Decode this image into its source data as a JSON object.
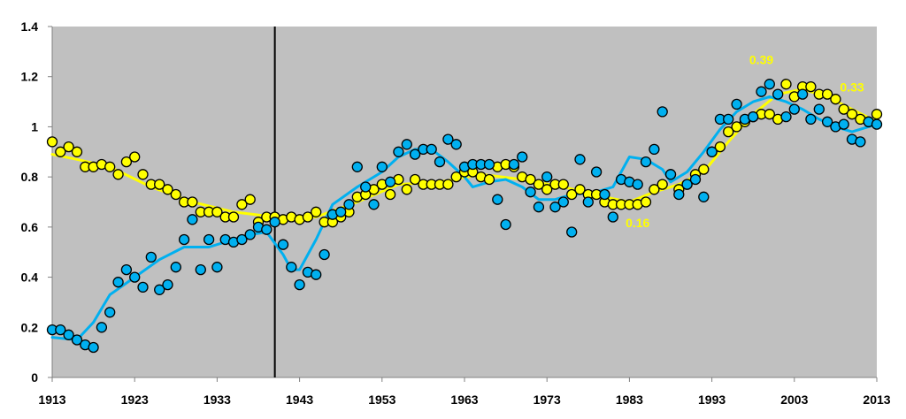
{
  "chart_data": {
    "type": "scatter",
    "x_ticks": [
      "1913",
      "1923",
      "1933",
      "1943",
      "1953",
      "1963",
      "1973",
      "1983",
      "1993",
      "2003",
      "2013"
    ],
    "y_ticks": [
      "0",
      "0.2",
      "0.4",
      "0.6",
      "0.8",
      "1",
      "1.2",
      "1.4"
    ],
    "xlim": [
      1913,
      2013
    ],
    "ylim": [
      0,
      1.4
    ],
    "grid": false,
    "plot_background": "#c0c0c0",
    "reference_line_x": 1940,
    "annotations": [
      {
        "text": "0.39",
        "x": 1999,
        "y": 1.25
      },
      {
        "text": "0.33",
        "x": 2010,
        "y": 1.14
      },
      {
        "text": "0.16",
        "x": 1984,
        "y": 0.6
      }
    ],
    "series": [
      {
        "color": "#ffff00",
        "points": [
          [
            1913,
            0.94
          ],
          [
            1914,
            0.9
          ],
          [
            1915,
            0.92
          ],
          [
            1916,
            0.9
          ],
          [
            1917,
            0.84
          ],
          [
            1918,
            0.84
          ],
          [
            1919,
            0.85
          ],
          [
            1920,
            0.84
          ],
          [
            1921,
            0.81
          ],
          [
            1922,
            0.86
          ],
          [
            1923,
            0.88
          ],
          [
            1924,
            0.81
          ],
          [
            1925,
            0.77
          ],
          [
            1926,
            0.77
          ],
          [
            1927,
            0.75
          ],
          [
            1928,
            0.73
          ],
          [
            1929,
            0.7
          ],
          [
            1930,
            0.7
          ],
          [
            1931,
            0.66
          ],
          [
            1932,
            0.66
          ],
          [
            1933,
            0.66
          ],
          [
            1934,
            0.64
          ],
          [
            1935,
            0.64
          ],
          [
            1936,
            0.69
          ],
          [
            1937,
            0.71
          ],
          [
            1938,
            0.62
          ],
          [
            1939,
            0.64
          ],
          [
            1940,
            0.64
          ],
          [
            1941,
            0.63
          ],
          [
            1942,
            0.64
          ],
          [
            1943,
            0.63
          ],
          [
            1944,
            0.64
          ],
          [
            1945,
            0.66
          ],
          [
            1946,
            0.62
          ],
          [
            1947,
            0.62
          ],
          [
            1948,
            0.64
          ],
          [
            1949,
            0.66
          ],
          [
            1950,
            0.72
          ],
          [
            1951,
            0.73
          ],
          [
            1952,
            0.75
          ],
          [
            1953,
            0.77
          ],
          [
            1954,
            0.73
          ],
          [
            1955,
            0.79
          ],
          [
            1956,
            0.75
          ],
          [
            1957,
            0.79
          ],
          [
            1958,
            0.77
          ],
          [
            1959,
            0.77
          ],
          [
            1960,
            0.77
          ],
          [
            1961,
            0.77
          ],
          [
            1962,
            0.8
          ],
          [
            1963,
            0.82
          ],
          [
            1964,
            0.82
          ],
          [
            1965,
            0.8
          ],
          [
            1966,
            0.79
          ],
          [
            1967,
            0.84
          ],
          [
            1968,
            0.85
          ],
          [
            1969,
            0.84
          ],
          [
            1970,
            0.8
          ],
          [
            1971,
            0.79
          ],
          [
            1972,
            0.77
          ],
          [
            1973,
            0.75
          ],
          [
            1974,
            0.77
          ],
          [
            1975,
            0.77
          ],
          [
            1976,
            0.73
          ],
          [
            1977,
            0.75
          ],
          [
            1978,
            0.73
          ],
          [
            1979,
            0.73
          ],
          [
            1980,
            0.7
          ],
          [
            1981,
            0.69
          ],
          [
            1982,
            0.69
          ],
          [
            1983,
            0.69
          ],
          [
            1984,
            0.69
          ],
          [
            1985,
            0.7
          ],
          [
            1986,
            0.75
          ],
          [
            1987,
            0.77
          ],
          [
            1988,
            0.81
          ],
          [
            1989,
            0.75
          ],
          [
            1990,
            0.77
          ],
          [
            1991,
            0.81
          ],
          [
            1992,
            0.83
          ],
          [
            1993,
            0.9
          ],
          [
            1994,
            0.92
          ],
          [
            1995,
            0.98
          ],
          [
            1996,
            1.0
          ],
          [
            1997,
            1.02
          ],
          [
            1998,
            1.04
          ],
          [
            1999,
            1.05
          ],
          [
            2000,
            1.05
          ],
          [
            2001,
            1.03
          ],
          [
            2002,
            1.17
          ],
          [
            2003,
            1.12
          ],
          [
            2004,
            1.16
          ],
          [
            2005,
            1.16
          ],
          [
            2006,
            1.13
          ],
          [
            2007,
            1.13
          ],
          [
            2008,
            1.11
          ],
          [
            2009,
            1.07
          ],
          [
            2010,
            1.05
          ],
          [
            2011,
            1.03
          ],
          [
            2012,
            1.02
          ],
          [
            2013,
            1.05
          ]
        ],
        "trend": [
          [
            1913,
            0.89
          ],
          [
            1916,
            0.87
          ],
          [
            1920,
            0.84
          ],
          [
            1925,
            0.76
          ],
          [
            1930,
            0.7
          ],
          [
            1935,
            0.66
          ],
          [
            1940,
            0.64
          ],
          [
            1945,
            0.64
          ],
          [
            1950,
            0.7
          ],
          [
            1955,
            0.77
          ],
          [
            1960,
            0.78
          ],
          [
            1965,
            0.81
          ],
          [
            1970,
            0.79
          ],
          [
            1975,
            0.76
          ],
          [
            1980,
            0.72
          ],
          [
            1983,
            0.7
          ],
          [
            1986,
            0.74
          ],
          [
            1989,
            0.77
          ],
          [
            1992,
            0.82
          ],
          [
            1995,
            0.94
          ],
          [
            1998,
            1.05
          ],
          [
            2001,
            1.13
          ],
          [
            2004,
            1.15
          ],
          [
            2007,
            1.12
          ],
          [
            2010,
            1.07
          ],
          [
            2013,
            1.02
          ]
        ]
      },
      {
        "color": "#00b0f0",
        "points": [
          [
            1913,
            0.19
          ],
          [
            1914,
            0.19
          ],
          [
            1915,
            0.17
          ],
          [
            1916,
            0.15
          ],
          [
            1917,
            0.13
          ],
          [
            1918,
            0.12
          ],
          [
            1919,
            0.2
          ],
          [
            1920,
            0.26
          ],
          [
            1921,
            0.38
          ],
          [
            1922,
            0.43
          ],
          [
            1923,
            0.4
          ],
          [
            1924,
            0.36
          ],
          [
            1925,
            0.48
          ],
          [
            1926,
            0.35
          ],
          [
            1927,
            0.37
          ],
          [
            1928,
            0.44
          ],
          [
            1929,
            0.55
          ],
          [
            1930,
            0.63
          ],
          [
            1931,
            0.43
          ],
          [
            1932,
            0.55
          ],
          [
            1933,
            0.44
          ],
          [
            1934,
            0.55
          ],
          [
            1935,
            0.54
          ],
          [
            1936,
            0.55
          ],
          [
            1937,
            0.57
          ],
          [
            1938,
            0.6
          ],
          [
            1939,
            0.59
          ],
          [
            1940,
            0.62
          ],
          [
            1941,
            0.53
          ],
          [
            1942,
            0.44
          ],
          [
            1943,
            0.37
          ],
          [
            1944,
            0.42
          ],
          [
            1945,
            0.41
          ],
          [
            1946,
            0.49
          ],
          [
            1947,
            0.65
          ],
          [
            1948,
            0.66
          ],
          [
            1949,
            0.69
          ],
          [
            1950,
            0.84
          ],
          [
            1951,
            0.76
          ],
          [
            1952,
            0.69
          ],
          [
            1953,
            0.84
          ],
          [
            1954,
            0.78
          ],
          [
            1955,
            0.9
          ],
          [
            1956,
            0.93
          ],
          [
            1957,
            0.89
          ],
          [
            1958,
            0.91
          ],
          [
            1959,
            0.91
          ],
          [
            1960,
            0.86
          ],
          [
            1961,
            0.95
          ],
          [
            1962,
            0.93
          ],
          [
            1963,
            0.84
          ],
          [
            1964,
            0.85
          ],
          [
            1965,
            0.85
          ],
          [
            1966,
            0.85
          ],
          [
            1967,
            0.71
          ],
          [
            1968,
            0.61
          ],
          [
            1969,
            0.85
          ],
          [
            1970,
            0.88
          ],
          [
            1971,
            0.74
          ],
          [
            1972,
            0.68
          ],
          [
            1973,
            0.8
          ],
          [
            1974,
            0.68
          ],
          [
            1975,
            0.7
          ],
          [
            1976,
            0.58
          ],
          [
            1977,
            0.87
          ],
          [
            1978,
            0.7
          ],
          [
            1979,
            0.82
          ],
          [
            1980,
            0.73
          ],
          [
            1981,
            0.64
          ],
          [
            1982,
            0.79
          ],
          [
            1983,
            0.78
          ],
          [
            1984,
            0.77
          ],
          [
            1985,
            0.86
          ],
          [
            1986,
            0.91
          ],
          [
            1987,
            1.06
          ],
          [
            1988,
            0.81
          ],
          [
            1989,
            0.73
          ],
          [
            1990,
            0.77
          ],
          [
            1991,
            0.79
          ],
          [
            1992,
            0.72
          ],
          [
            1993,
            0.9
          ],
          [
            1994,
            1.03
          ],
          [
            1995,
            1.03
          ],
          [
            1996,
            1.09
          ],
          [
            1997,
            1.03
          ],
          [
            1998,
            1.04
          ],
          [
            1999,
            1.14
          ],
          [
            2000,
            1.17
          ],
          [
            2001,
            1.13
          ],
          [
            2002,
            1.04
          ],
          [
            2003,
            1.07
          ],
          [
            2004,
            1.13
          ],
          [
            2005,
            1.03
          ],
          [
            2006,
            1.07
          ],
          [
            2007,
            1.02
          ],
          [
            2008,
            1.0
          ],
          [
            2009,
            1.01
          ],
          [
            2010,
            0.95
          ],
          [
            2011,
            0.94
          ],
          [
            2012,
            1.02
          ],
          [
            2013,
            1.01
          ]
        ],
        "trend": [
          [
            1913,
            0.16
          ],
          [
            1916,
            0.15
          ],
          [
            1918,
            0.22
          ],
          [
            1920,
            0.33
          ],
          [
            1923,
            0.4
          ],
          [
            1926,
            0.47
          ],
          [
            1929,
            0.52
          ],
          [
            1932,
            0.52
          ],
          [
            1935,
            0.55
          ],
          [
            1937,
            0.57
          ],
          [
            1939,
            0.58
          ],
          [
            1941,
            0.49
          ],
          [
            1942,
            0.43
          ],
          [
            1943,
            0.43
          ],
          [
            1945,
            0.55
          ],
          [
            1947,
            0.69
          ],
          [
            1950,
            0.76
          ],
          [
            1953,
            0.82
          ],
          [
            1955,
            0.88
          ],
          [
            1957,
            0.91
          ],
          [
            1959,
            0.91
          ],
          [
            1961,
            0.86
          ],
          [
            1963,
            0.8
          ],
          [
            1964,
            0.76
          ],
          [
            1966,
            0.78
          ],
          [
            1968,
            0.79
          ],
          [
            1970,
            0.76
          ],
          [
            1972,
            0.71
          ],
          [
            1974,
            0.71
          ],
          [
            1976,
            0.73
          ],
          [
            1979,
            0.74
          ],
          [
            1981,
            0.76
          ],
          [
            1982,
            0.82
          ],
          [
            1983,
            0.88
          ],
          [
            1985,
            0.87
          ],
          [
            1987,
            0.83
          ],
          [
            1988,
            0.78
          ],
          [
            1990,
            0.82
          ],
          [
            1992,
            0.9
          ],
          [
            1994,
            0.99
          ],
          [
            1996,
            1.06
          ],
          [
            1998,
            1.1
          ],
          [
            2000,
            1.12
          ],
          [
            2002,
            1.1
          ],
          [
            2004,
            1.07
          ],
          [
            2006,
            1.03
          ],
          [
            2008,
            1.0
          ],
          [
            2010,
            0.98
          ],
          [
            2013,
            1.01
          ]
        ]
      }
    ]
  }
}
